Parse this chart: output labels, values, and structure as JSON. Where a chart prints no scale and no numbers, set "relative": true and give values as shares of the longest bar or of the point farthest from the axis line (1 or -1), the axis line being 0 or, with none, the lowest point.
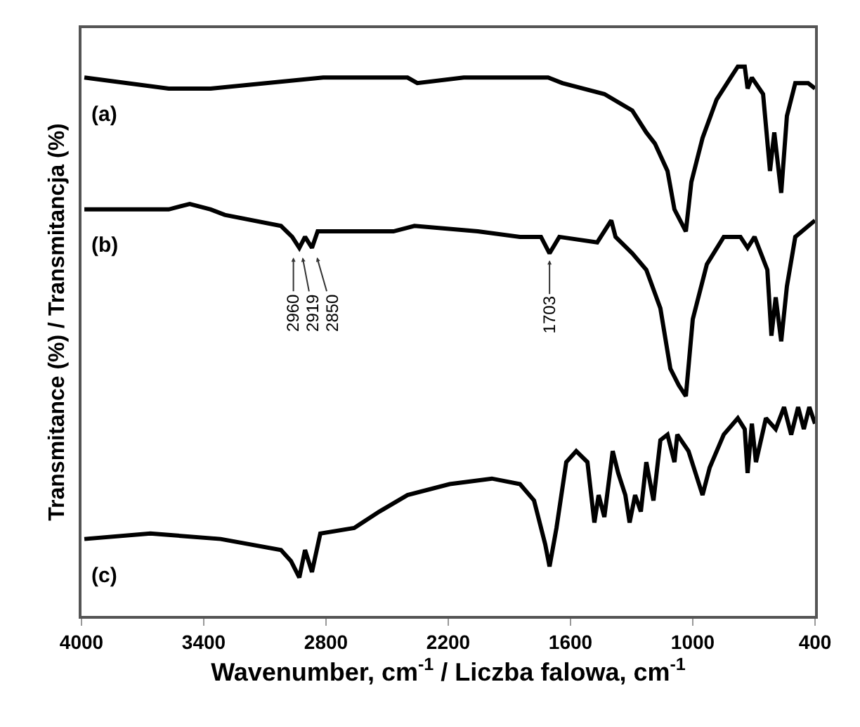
{
  "chart_data": {
    "type": "line",
    "relative": true,
    "xlabel": "Wavenumber, cm$^{-1}$ / Liczba falowa, cm$^{-1}$",
    "ylabel": "Transmitance (%) / Transmitancja (%)",
    "xlim": [
      4000,
      400
    ],
    "xticks": [
      4000,
      3400,
      2800,
      2200,
      1600,
      1000,
      400
    ],
    "tick_labels": "x",
    "grid": false,
    "legend": false,
    "marker": "none",
    "line_style": "solid",
    "series": [
      {
        "name": "(a)",
        "color": "#000000",
        "x": [
          3986,
          3572,
          3366,
          2814,
          2400,
          2352,
          2124,
          1710,
          1641,
          1434,
          1297,
          1228,
          1186,
          1124,
          1090,
          1034,
          1007,
          952,
          883,
          814,
          779,
          745,
          731,
          710,
          655,
          621,
          600,
          566,
          538,
          497,
          434,
          400
        ],
        "values": [
          0.98,
          0.96,
          0.96,
          0.98,
          0.98,
          0.97,
          0.98,
          0.98,
          0.97,
          0.95,
          0.92,
          0.88,
          0.86,
          0.81,
          0.74,
          0.7,
          0.79,
          0.87,
          0.94,
          0.98,
          1.0,
          1.0,
          0.96,
          0.98,
          0.95,
          0.81,
          0.88,
          0.77,
          0.91,
          0.97,
          0.97,
          0.96
        ]
      },
      {
        "name": "(b)",
        "color": "#000000",
        "x": [
          3986,
          3572,
          3469,
          3366,
          3297,
          3021,
          2966,
          2931,
          2903,
          2869,
          2841,
          2469,
          2366,
          2055,
          1848,
          1745,
          1703,
          1655,
          1469,
          1400,
          1379,
          1297,
          1228,
          1159,
          1110,
          1069,
          1034,
          1000,
          931,
          848,
          766,
          731,
          697,
          634,
          614,
          593,
          566,
          538,
          497,
          400
        ],
        "values": [
          0.74,
          0.74,
          0.75,
          0.74,
          0.73,
          0.71,
          0.69,
          0.67,
          0.69,
          0.67,
          0.7,
          0.7,
          0.71,
          0.7,
          0.69,
          0.69,
          0.66,
          0.69,
          0.68,
          0.72,
          0.69,
          0.66,
          0.63,
          0.56,
          0.45,
          0.42,
          0.4,
          0.54,
          0.64,
          0.69,
          0.69,
          0.67,
          0.69,
          0.63,
          0.51,
          0.58,
          0.5,
          0.6,
          0.69,
          0.72
        ]
      },
      {
        "name": "(c)",
        "color": "#000000",
        "x": [
          3986,
          3662,
          3317,
          3021,
          2972,
          2931,
          2903,
          2869,
          2828,
          2662,
          2538,
          2400,
          2193,
          1986,
          1848,
          1779,
          1724,
          1703,
          1669,
          1621,
          1572,
          1517,
          1483,
          1462,
          1434,
          1393,
          1366,
          1331,
          1310,
          1283,
          1255,
          1228,
          1193,
          1159,
          1124,
          1090,
          1076,
          1021,
          952,
          917,
          848,
          779,
          745,
          731,
          710,
          690,
          641,
          593,
          552,
          517,
          483,
          455,
          428,
          400
        ],
        "values": [
          0.14,
          0.15,
          0.14,
          0.12,
          0.1,
          0.07,
          0.12,
          0.08,
          0.15,
          0.16,
          0.19,
          0.22,
          0.24,
          0.25,
          0.24,
          0.21,
          0.13,
          0.09,
          0.16,
          0.28,
          0.3,
          0.28,
          0.17,
          0.22,
          0.18,
          0.3,
          0.26,
          0.22,
          0.17,
          0.22,
          0.19,
          0.28,
          0.21,
          0.32,
          0.33,
          0.28,
          0.33,
          0.3,
          0.22,
          0.27,
          0.33,
          0.36,
          0.34,
          0.26,
          0.35,
          0.28,
          0.36,
          0.34,
          0.38,
          0.33,
          0.38,
          0.34,
          0.38,
          0.35
        ]
      }
    ],
    "annotations": [
      {
        "text": "2960",
        "x": 2960,
        "y": 0.66
      },
      {
        "text": "2919",
        "x": 2919,
        "y": 0.66
      },
      {
        "text": "2850",
        "x": 2850,
        "y": 0.66
      },
      {
        "text": "1703",
        "x": 1703,
        "y": 0.655
      }
    ]
  }
}
